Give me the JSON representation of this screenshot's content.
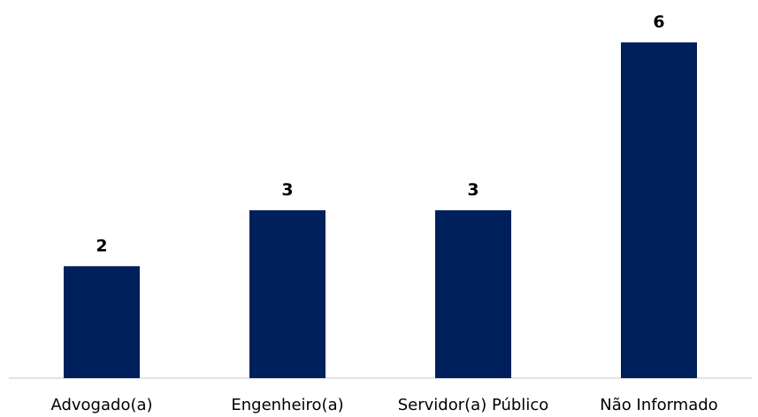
{
  "chart_data": {
    "type": "bar",
    "categories": [
      "Advogado(a)",
      "Engenheiro(a)",
      "Servidor(a) Público",
      "Não Informado"
    ],
    "values": [
      2,
      3,
      3,
      6
    ],
    "value_labels": [
      "2",
      "3",
      "3",
      "6"
    ],
    "ylim": [
      0,
      6
    ],
    "grid": false,
    "legend": "none",
    "bar_color": "#00205b"
  }
}
